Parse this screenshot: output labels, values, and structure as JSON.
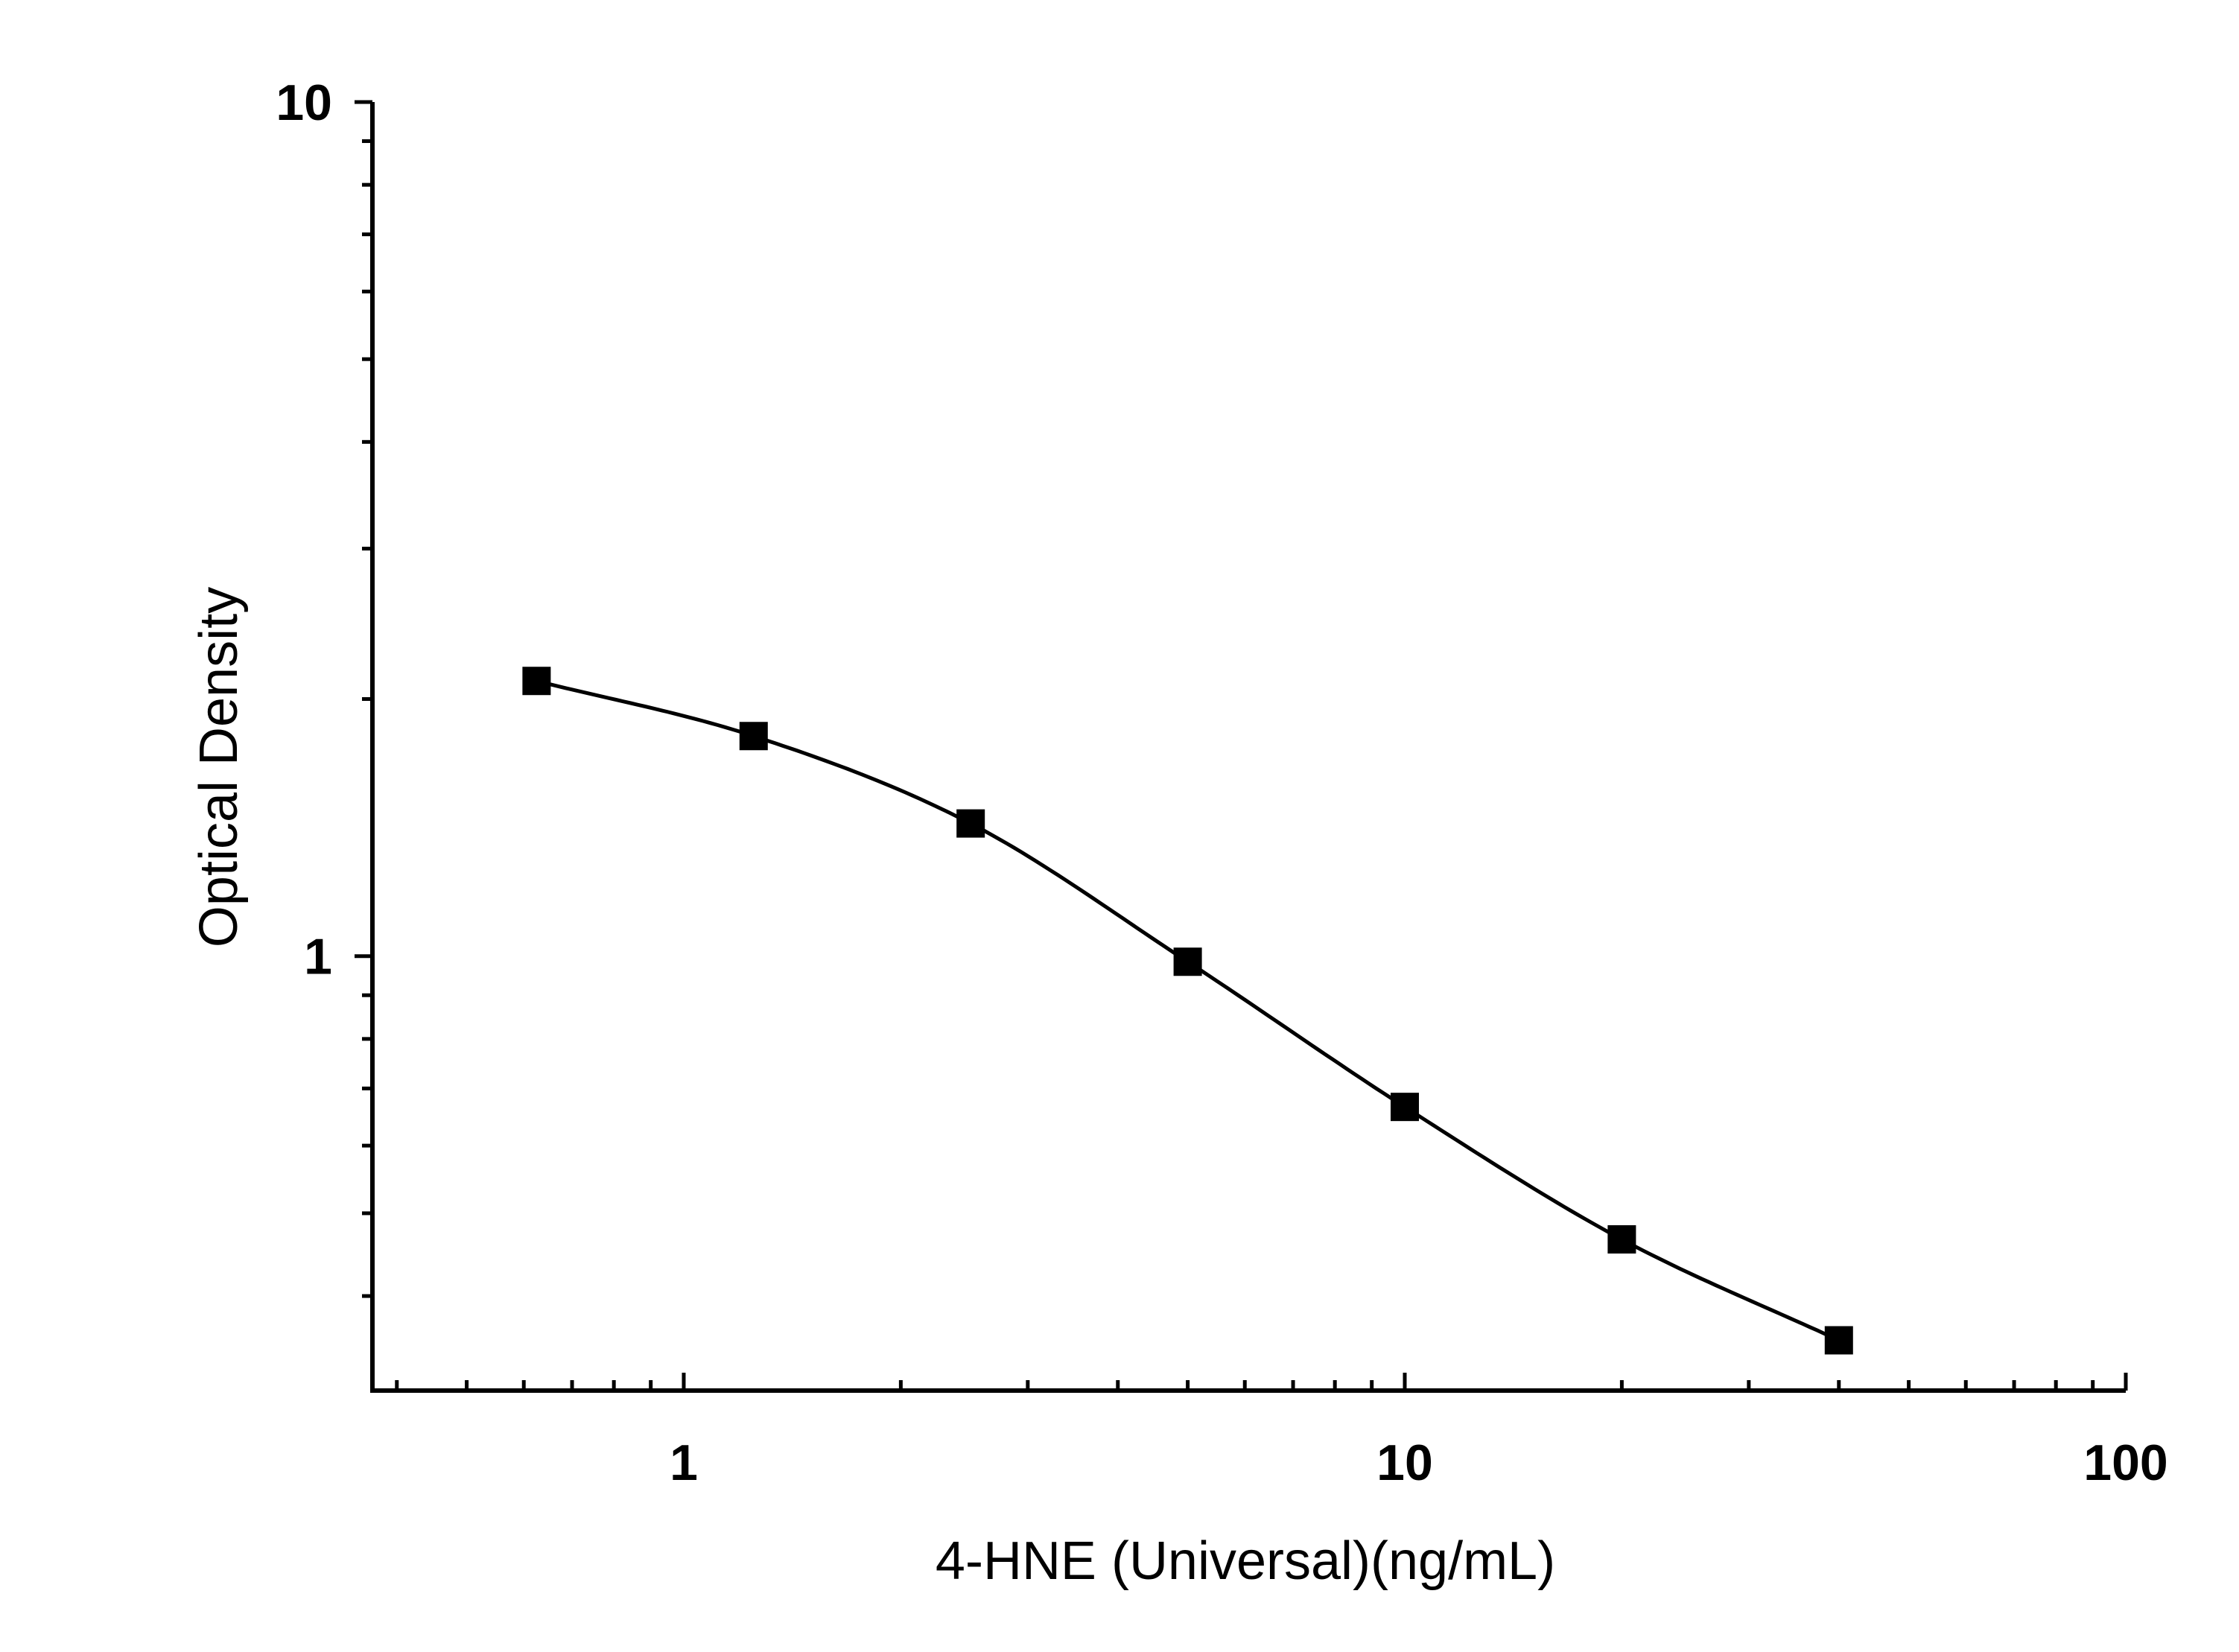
{
  "chart_data": {
    "type": "scatter",
    "xlabel": "4-HNE (Universal)(ng/mL)",
    "ylabel": "Optical Density",
    "x_scale": "log",
    "y_scale": "log",
    "xlim": [
      0.37,
      100
    ],
    "ylim": [
      0.31,
      10
    ],
    "x_ticks": [
      {
        "value": 1,
        "label": "1"
      },
      {
        "value": 10,
        "label": "10"
      },
      {
        "value": 100,
        "label": "100"
      }
    ],
    "y_ticks": [
      {
        "value": 1,
        "label": "1"
      },
      {
        "value": 10,
        "label": "10"
      }
    ],
    "grid": false,
    "legend": "none",
    "series": [
      {
        "marker": "square",
        "color": "#000000",
        "x": [
          0.625,
          1.25,
          2.5,
          5,
          10,
          20,
          40
        ],
        "y": [
          2.1,
          1.81,
          1.43,
          0.985,
          0.666,
          0.466,
          0.355
        ]
      }
    ],
    "fit_curve": true
  }
}
